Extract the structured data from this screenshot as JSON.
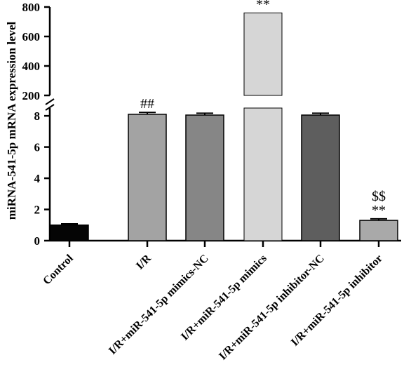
{
  "chart_data": {
    "type": "bar",
    "ylabel": "miRNA-541-5p mRNA expression level",
    "y_axis_break": [
      8.5,
      200
    ],
    "ylim_lower": [
      0,
      8.5
    ],
    "ylim_upper": [
      200,
      800
    ],
    "yticks_lower": [
      "0",
      "2",
      "4",
      "6",
      "8"
    ],
    "yticks_upper": [
      "200",
      "400",
      "600",
      "800"
    ],
    "categories": [
      "Control",
      "I/R",
      "I/R+miR-541-5p mimics-NC",
      "I/R+miR-541-5p mimics",
      "I/R+miR-541-5p inhibitor-NC",
      "I/R+miR-541-5p inhibitor"
    ],
    "values": [
      1.0,
      8.1,
      8.05,
      760,
      8.05,
      1.3
    ],
    "errors": [
      0.08,
      0.12,
      0.12,
      0,
      0.12,
      0.1
    ],
    "colors": [
      "#050505",
      "#a3a3a3",
      "#868686",
      "#d6d6d6",
      "#5e5e5e",
      "#a9a9a9"
    ],
    "annotations": [
      {
        "category_index": 1,
        "lines": [
          "##"
        ]
      },
      {
        "category_index": 3,
        "lines": [
          "**"
        ]
      },
      {
        "category_index": 5,
        "lines": [
          "$$",
          "**"
        ]
      }
    ],
    "grid": false
  }
}
